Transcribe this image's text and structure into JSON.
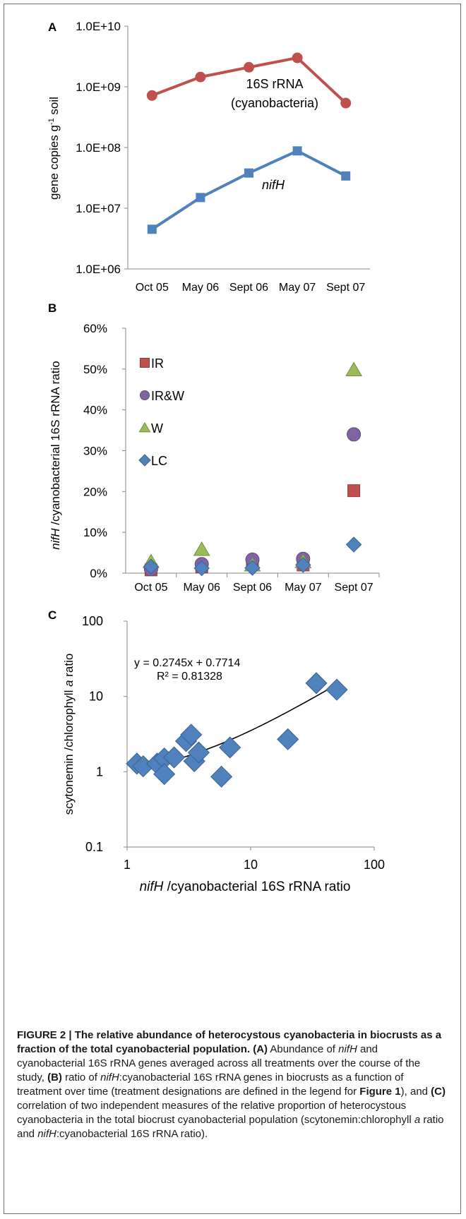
{
  "colors": {
    "red": "#c0504d",
    "blue": "#4f81bd",
    "purple": "#8064a2",
    "green": "#9bbb59",
    "trend": "#000000"
  },
  "panels": {
    "a": {
      "letter": "A"
    },
    "b": {
      "letter": "B"
    },
    "c": {
      "letter": "C"
    }
  },
  "chart_data": [
    {
      "id": "A",
      "type": "line",
      "scale": "log",
      "categories": [
        "Oct 05",
        "May 06",
        "Sept 06",
        "May 07",
        "Sept 07"
      ],
      "ylabel_main": "gene copies g",
      "ylabel_sup": "-1",
      "ylabel_tail": " soil",
      "yticks": [
        "1.0E+06",
        "1.0E+07",
        "1.0E+08",
        "1.0E+09",
        "1.0E+10"
      ],
      "ylim": [
        1000000,
        10000000000
      ],
      "series": [
        {
          "name": "16S rRNA (cyanobacteria)",
          "label_line1": "16S rRNA",
          "label_line2": "(cyanobacteria)",
          "color": "#c0504d",
          "marker": "circle",
          "values": [
            720000000,
            1450000000,
            2100000000,
            3000000000,
            540000000
          ]
        },
        {
          "name": "nifH",
          "label_line1": "nifH",
          "color": "#4f81bd",
          "marker": "square",
          "values": [
            4500000,
            15000000,
            38000000,
            88000000,
            34000000
          ]
        }
      ]
    },
    {
      "id": "B",
      "type": "scatter",
      "categories": [
        "Oct 05",
        "May 06",
        "Sept 06",
        "May 07",
        "Sept 07"
      ],
      "ylabel_italic": "nifH",
      "ylabel_rest": " /cyanobacterial 16S rRNA ratio",
      "yticks": [
        "0%",
        "10%",
        "20%",
        "30%",
        "40%",
        "50%",
        "60%"
      ],
      "ylim": [
        0,
        60
      ],
      "legend_position": "top-left",
      "series": [
        {
          "name": "IR",
          "marker": "square",
          "color": "#c0504d",
          "values": [
            0.8,
            1.5,
            2.0,
            2.0,
            20.2
          ]
        },
        {
          "name": "IR&W",
          "marker": "circle",
          "color": "#8064a2",
          "values": [
            1.0,
            2.2,
            3.3,
            3.5,
            34.0
          ]
        },
        {
          "name": "W",
          "marker": "triangle",
          "color": "#9bbb59",
          "values": [
            2.8,
            5.8,
            2.0,
            2.8,
            49.8
          ]
        },
        {
          "name": "LC",
          "marker": "diamond",
          "color": "#4f81bd",
          "values": [
            1.6,
            1.2,
            1.3,
            2.0,
            7.0
          ]
        }
      ]
    },
    {
      "id": "C",
      "type": "scatter",
      "scale": "log-log",
      "xlabel_italic": "nifH",
      "xlabel_rest": " /cyanobacterial 16S rRNA ratio",
      "ylabel_main": "scytonemin /chlorophyll ",
      "ylabel_italic": "a",
      "ylabel_tail": " ratio",
      "xticks": [
        "1",
        "10",
        "100"
      ],
      "yticks": [
        "0.1",
        "1",
        "10",
        "100"
      ],
      "xlim": [
        1,
        100
      ],
      "ylim": [
        0.1,
        100
      ],
      "equation": "y = 0.2745x + 0.7714",
      "r2": "R² = 0.81328",
      "trend": {
        "slope": 0.2745,
        "intercept": 0.7714,
        "x_range": [
          1.3,
          50
        ]
      },
      "points": [
        {
          "x": 1.2,
          "y": 1.28
        },
        {
          "x": 1.35,
          "y": 1.18
        },
        {
          "x": 1.75,
          "y": 1.28
        },
        {
          "x": 2.0,
          "y": 1.5
        },
        {
          "x": 2.0,
          "y": 0.93
        },
        {
          "x": 2.4,
          "y": 1.55
        },
        {
          "x": 3.0,
          "y": 2.55
        },
        {
          "x": 3.3,
          "y": 3.1
        },
        {
          "x": 3.5,
          "y": 1.38
        },
        {
          "x": 3.8,
          "y": 1.8
        },
        {
          "x": 5.8,
          "y": 0.86
        },
        {
          "x": 6.8,
          "y": 2.1
        },
        {
          "x": 20.0,
          "y": 2.7
        },
        {
          "x": 34.0,
          "y": 15.0
        },
        {
          "x": 49.8,
          "y": 12.3
        }
      ]
    }
  ],
  "caption": {
    "title": "FIGURE 2 | The relative abundance of heterocystous cyanobacteria in biocrusts as a fraction of the total cyanobacterial population.",
    "a_tag": "(A)",
    "a_text_1": " Abundance of ",
    "a_italic": "nifH",
    "a_text_2": " and cyanobacterial 16S rRNA genes averaged across all treatments over the course of the study, ",
    "b_tag": "(B)",
    "b_text_1": " ratio of ",
    "b_italic": "nifH",
    "b_text_2": ":cyanobacterial 16S rRNA genes in biocrusts as a function of treatment over time (treatment designations are defined in the legend for ",
    "b_bold": "Figure 1",
    "b_text_3": "), and ",
    "c_tag": "(C)",
    "c_text_1": " correlation of two independent measures of the relative proportion of heterocystous cyanobacteria in the total biocrust cyanobacterial population (scytonemin:chlorophyll ",
    "c_italic": "a",
    "c_text_2": " ratio and ",
    "c_italic_2": "nifH",
    "c_text_3": ":cyanobacterial 16S rRNA ratio)."
  }
}
